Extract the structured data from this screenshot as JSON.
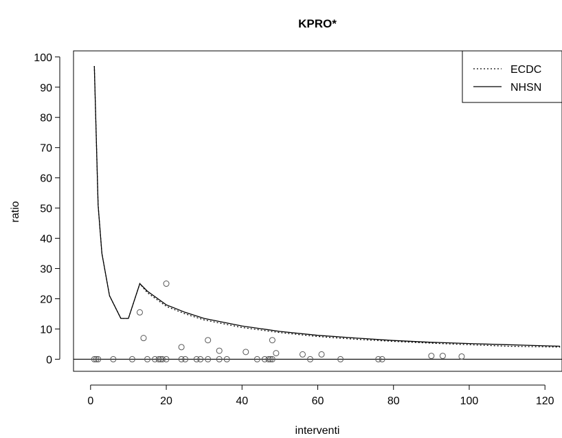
{
  "chart_data": {
    "type": "scatter",
    "title": "KPRO*",
    "xlabel": "interventi",
    "ylabel": "ratio",
    "xlim": [
      -4.5,
      124.5
    ],
    "ylim": [
      -4,
      102
    ],
    "xticks": [
      0,
      20,
      40,
      60,
      80,
      100,
      120
    ],
    "yticks": [
      0,
      10,
      20,
      30,
      40,
      50,
      60,
      70,
      80,
      90,
      100
    ],
    "grid": false,
    "legend": {
      "position": "top-right",
      "entries": [
        "ECDC",
        "NHSN"
      ]
    },
    "reference_line": {
      "y": 0
    },
    "points": [
      {
        "x": 1,
        "y": 0
      },
      {
        "x": 1.5,
        "y": 0
      },
      {
        "x": 2,
        "y": 0
      },
      {
        "x": 6,
        "y": 0
      },
      {
        "x": 11,
        "y": 0
      },
      {
        "x": 13,
        "y": 15.5
      },
      {
        "x": 14,
        "y": 7
      },
      {
        "x": 15,
        "y": 0
      },
      {
        "x": 17,
        "y": 0
      },
      {
        "x": 18,
        "y": 0
      },
      {
        "x": 18.5,
        "y": 0
      },
      {
        "x": 19,
        "y": 0
      },
      {
        "x": 20,
        "y": 0
      },
      {
        "x": 20,
        "y": 25
      },
      {
        "x": 24,
        "y": 4
      },
      {
        "x": 24,
        "y": 0
      },
      {
        "x": 25,
        "y": 0
      },
      {
        "x": 28,
        "y": 0
      },
      {
        "x": 29,
        "y": 0
      },
      {
        "x": 31,
        "y": 0
      },
      {
        "x": 31,
        "y": 6.3
      },
      {
        "x": 34,
        "y": 0
      },
      {
        "x": 34,
        "y": 2.8
      },
      {
        "x": 36,
        "y": 0
      },
      {
        "x": 41,
        "y": 2.4
      },
      {
        "x": 44,
        "y": 0
      },
      {
        "x": 46,
        "y": 0
      },
      {
        "x": 47,
        "y": 0
      },
      {
        "x": 47.5,
        "y": 0
      },
      {
        "x": 48,
        "y": 0
      },
      {
        "x": 48,
        "y": 6.3
      },
      {
        "x": 49,
        "y": 2
      },
      {
        "x": 56,
        "y": 1.6
      },
      {
        "x": 58,
        "y": 0
      },
      {
        "x": 61,
        "y": 1.6
      },
      {
        "x": 66,
        "y": 0
      },
      {
        "x": 76,
        "y": 0
      },
      {
        "x": 77,
        "y": 0
      },
      {
        "x": 90,
        "y": 1.1
      },
      {
        "x": 93,
        "y": 1.1
      },
      {
        "x": 98,
        "y": 0.9
      }
    ],
    "series": [
      {
        "name": "ECDC",
        "style": "dotted",
        "x": [
          1,
          2,
          3,
          5,
          8,
          10,
          13,
          15,
          20,
          25,
          30,
          40,
          50,
          60,
          70,
          80,
          90,
          100,
          110,
          124
        ],
        "y": [
          97,
          51,
          35,
          21,
          13.5,
          13.5,
          25,
          22,
          17.5,
          15,
          13,
          10.5,
          8.8,
          7.5,
          6.6,
          5.9,
          5.3,
          4.8,
          4.3,
          4
        ]
      },
      {
        "name": "NHSN",
        "style": "solid",
        "x": [
          1,
          2,
          3,
          5,
          8,
          10,
          13,
          15,
          20,
          25,
          30,
          40,
          50,
          60,
          70,
          80,
          90,
          100,
          110,
          124
        ],
        "y": [
          97,
          51,
          35,
          21,
          13.5,
          13.5,
          25,
          22.5,
          18,
          15.5,
          13.5,
          11,
          9.2,
          7.9,
          7,
          6.2,
          5.6,
          5.2,
          4.8,
          4.3
        ]
      }
    ]
  }
}
